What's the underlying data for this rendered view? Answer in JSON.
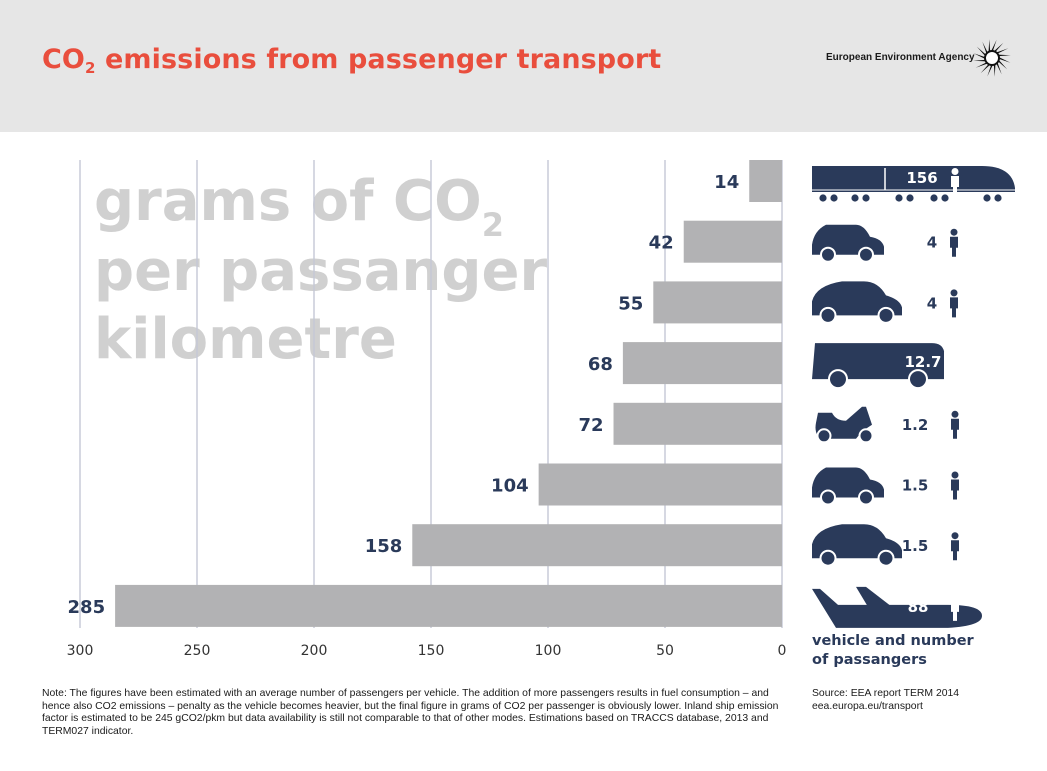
{
  "header": {
    "title_pre": "CO",
    "title_sub": "2",
    "title_post": " emissions from passenger transport",
    "agency": "European Environment Agency"
  },
  "chart_data": {
    "type": "bar",
    "orientation": "horizontal",
    "direction": "right-to-left",
    "title": "CO2 emissions from passenger transport",
    "watermark": {
      "line1": "grams of CO",
      "line1_sub": "2",
      "line2": "per passanger",
      "line3": "kilometre"
    },
    "values": [
      14,
      42,
      55,
      68,
      72,
      104,
      158,
      285
    ],
    "vehicles": [
      {
        "icon": "train-icon",
        "passengers": "156"
      },
      {
        "icon": "small-car-icon",
        "passengers": "4"
      },
      {
        "icon": "car-icon",
        "passengers": "4"
      },
      {
        "icon": "bus-icon",
        "passengers": "12.7"
      },
      {
        "icon": "scooter-icon",
        "passengers": "1.2"
      },
      {
        "icon": "small-car-icon",
        "passengers": "1.5"
      },
      {
        "icon": "car-icon",
        "passengers": "1.5"
      },
      {
        "icon": "airplane-icon",
        "passengers": "88"
      }
    ],
    "xlim": [
      0,
      300
    ],
    "xticks": [
      300,
      250,
      200,
      150,
      100,
      50,
      0
    ],
    "legend_line1": "vehicle and number",
    "legend_line2": "of passangers",
    "grid": true,
    "colors": {
      "bar": "#b2b2b4",
      "label": "#2a3a5a",
      "icon": "#2a3a5a",
      "grid": "#c4c8d6",
      "watermark": "#d0d0d0"
    }
  },
  "footnote": "Note: The figures have been estimated with an average number of passengers per vehicle. The addition of more passengers results in fuel consumption – and hence also CO2 emissions – penalty as the vehicle becomes heavier, but the final figure in grams of CO2 per passenger is obviously lower. Inland ship emission factor is estimated to be 245 gCO2/pkm but data availability is still not comparable to that of other modes. Estimations based on TRACCS database, 2013 and TERM027 indicator.",
  "source": {
    "line1": "Source: EEA report TERM 2014",
    "line2": "eea.europa.eu/transport"
  }
}
